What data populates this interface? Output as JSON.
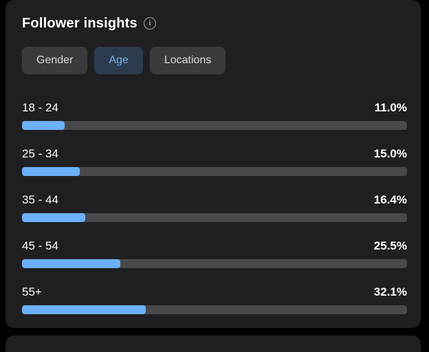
{
  "panel": {
    "title": "Follower insights",
    "info_icon": "i",
    "info_icon_name": "info-icon"
  },
  "tabs": [
    {
      "label": "Gender",
      "active": false
    },
    {
      "label": "Age",
      "active": true
    },
    {
      "label": "Locations",
      "active": false
    }
  ],
  "chart_data": {
    "type": "bar",
    "orientation": "horizontal",
    "title": "Follower insights — Age distribution",
    "categories": [
      "18 - 24",
      "25 - 34",
      "35 - 44",
      "45 - 54",
      "55+"
    ],
    "values": [
      11.0,
      15.0,
      16.4,
      25.5,
      32.1
    ],
    "value_labels": [
      "11.0%",
      "15.0%",
      "16.4%",
      "25.5%",
      "32.1%"
    ],
    "xlim": [
      0,
      100
    ],
    "grid": false,
    "legend": false
  },
  "colors": {
    "background": "#000000",
    "card": "#1f1f21",
    "bar_fill": "#6cb0f8",
    "bar_track": "#49494b",
    "tab_active_bg": "#2b3b4d",
    "tab_active_text": "#7aadee",
    "tab_bg": "#3b3b3d",
    "tab_text": "#d8d8d8",
    "text": "#ffffff"
  }
}
